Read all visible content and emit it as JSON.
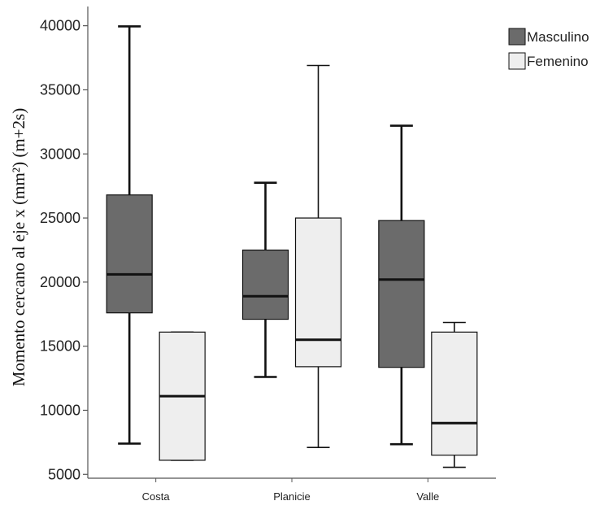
{
  "chart_data": {
    "type": "box",
    "title": "",
    "xlabel": "",
    "ylabel": "Momento cercano al eje x (mm²) (m+2s)",
    "ylim": [
      4700,
      41500
    ],
    "yticks": [
      5000,
      10000,
      15000,
      20000,
      25000,
      30000,
      35000,
      40000
    ],
    "categories": [
      "Costa",
      "Planicie",
      "Valle"
    ],
    "legend_position": "top-right",
    "grid": false,
    "series": [
      {
        "name": "Masculino",
        "color": "#6b6b6b",
        "boxes": [
          {
            "min": 7400,
            "q1": 17600,
            "median": 20600,
            "q3": 26800,
            "max": 39950
          },
          {
            "min": 12600,
            "q1": 17100,
            "median": 18900,
            "q3": 22500,
            "max": 27750
          },
          {
            "min": 7350,
            "q1": 13350,
            "median": 20200,
            "q3": 24800,
            "max": 32200
          }
        ]
      },
      {
        "name": "Femenino",
        "color": "#eeeeee",
        "boxes": [
          {
            "min": 6100,
            "q1": 6100,
            "median": 11100,
            "q3": 16100,
            "max": 16100
          },
          {
            "min": 7100,
            "q1": 13400,
            "median": 15500,
            "q3": 25000,
            "max": 36900
          },
          {
            "min": 5550,
            "q1": 6500,
            "median": 9000,
            "q3": 16100,
            "max": 16850
          }
        ]
      }
    ]
  }
}
